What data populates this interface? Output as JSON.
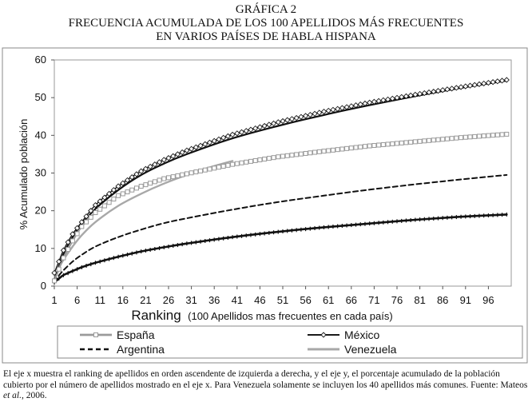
{
  "title": {
    "line1": "GRÁFICA 2",
    "line2": "FRECUENCIA ACUMULADA DE LOS 100 APELLIDOS MÁS FRECUENTES",
    "line3": "EN VARIOS PAÍSES DE HABLA HISPANA"
  },
  "caption": {
    "part1": "El eje x muestra el ranking de apellidos en orden ascendente de izquierda a derecha, y el eje y, el porcentaje acumulado de la población cubierto por el número de apellidos mostrado en el eje x. Para Venezuela solamente se incluyen los 40 apellidos más comunes. Fuente: Mateos ",
    "italic": "et al.",
    "part2": ", 2006."
  },
  "chart_data": {
    "type": "line",
    "xlabel": "Ranking",
    "xlabel_note": "(100 Apellidos mas frecuentes en cada país)",
    "ylabel": "% Acumulado población",
    "xlim": [
      1,
      101
    ],
    "ylim": [
      0,
      60
    ],
    "x_ticks": [
      1,
      6,
      11,
      16,
      21,
      26,
      31,
      36,
      41,
      46,
      51,
      56,
      61,
      66,
      71,
      76,
      81,
      86,
      91,
      96
    ],
    "y_ticks": [
      0,
      10,
      20,
      30,
      40,
      50,
      60
    ],
    "grid": false,
    "legend_position": "bottom",
    "series": [
      {
        "name": "España",
        "style": "line-square-markers",
        "color": "#9a9a9a",
        "x": [
          1,
          2,
          3,
          5,
          7,
          10,
          15,
          20,
          25,
          30,
          40,
          50,
          60,
          70,
          80,
          90,
          100
        ],
        "values": [
          1.4,
          4.5,
          7.5,
          12.0,
          15.8,
          19.5,
          24.0,
          26.5,
          28.5,
          29.8,
          32.3,
          34.3,
          35.8,
          37.2,
          38.3,
          39.4,
          40.3
        ]
      },
      {
        "name": "México",
        "style": "line-diamond-markers",
        "color": "#1a1a1a",
        "x": [
          1,
          2,
          3,
          5,
          7,
          10,
          15,
          20,
          25,
          30,
          40,
          50,
          60,
          70,
          80,
          90,
          100
        ],
        "values": [
          3.5,
          6.5,
          9.5,
          13.8,
          17.0,
          21.5,
          26.5,
          30.5,
          33.5,
          36.0,
          40.2,
          43.5,
          46.3,
          48.7,
          50.8,
          52.8,
          54.7
        ]
      },
      {
        "name": "Argentina",
        "style": "dashed",
        "color": "#111111",
        "x": [
          1,
          2,
          3,
          5,
          7,
          10,
          15,
          20,
          25,
          30,
          40,
          50,
          60,
          70,
          80,
          90,
          100
        ],
        "values": [
          1.0,
          2.8,
          4.2,
          6.5,
          8.3,
          10.5,
          13.0,
          15.0,
          16.7,
          18.0,
          20.3,
          22.3,
          24.0,
          25.6,
          27.0,
          28.3,
          29.5
        ]
      },
      {
        "name": "Venezuela",
        "style": "solid",
        "color": "#a8a8a8",
        "x": [
          1,
          2,
          3,
          5,
          7,
          10,
          15,
          20,
          25,
          30,
          35,
          40
        ],
        "values": [
          2.0,
          4.8,
          7.0,
          10.5,
          13.5,
          17.0,
          21.3,
          24.5,
          27.2,
          29.5,
          31.5,
          33.2
        ]
      },
      {
        "name": "",
        "style": "solid-thick",
        "color": "#111111",
        "x": [
          1,
          2,
          3,
          5,
          7,
          10,
          15,
          20,
          25,
          30,
          40,
          50,
          60,
          70,
          80,
          90,
          100
        ],
        "values": [
          1.5,
          5.2,
          8.5,
          13.0,
          16.5,
          20.5,
          25.5,
          29.5,
          32.5,
          35.0,
          39.2,
          42.5,
          45.4,
          48.0,
          50.4,
          52.6,
          54.5
        ]
      },
      {
        "name": "",
        "style": "solid-marked",
        "color": "#111111",
        "x": [
          1,
          2,
          3,
          5,
          7,
          10,
          15,
          20,
          25,
          30,
          40,
          50,
          60,
          70,
          80,
          90,
          100
        ],
        "values": [
          1.0,
          2.0,
          2.9,
          4.0,
          5.0,
          6.2,
          7.8,
          9.2,
          10.3,
          11.3,
          13.0,
          14.4,
          15.6,
          16.6,
          17.6,
          18.4,
          19.0
        ]
      }
    ]
  }
}
